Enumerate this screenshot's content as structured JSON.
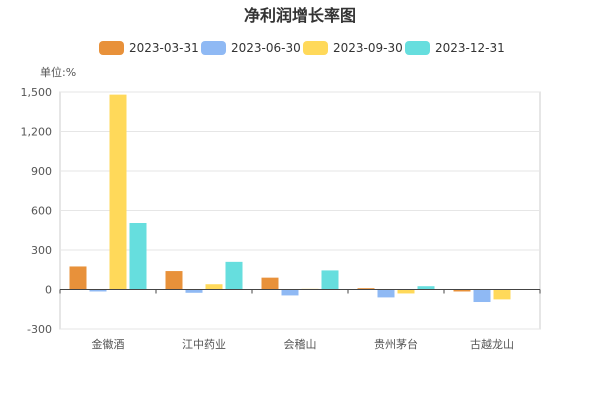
{
  "chart_data": {
    "type": "bar",
    "title": "净利润增长率图",
    "unit_label": "单位:%",
    "categories": [
      "金徽酒",
      "江中药业",
      "会稽山",
      "贵州茅台",
      "古越龙山"
    ],
    "series": [
      {
        "name": "2023-03-31",
        "color": "#E8913A",
        "values": [
          175,
          140,
          90,
          10,
          -15
        ]
      },
      {
        "name": "2023-06-30",
        "color": "#8FB9F4",
        "values": [
          -15,
          -25,
          -45,
          -60,
          -95
        ]
      },
      {
        "name": "2023-09-30",
        "color": "#FFD95A",
        "values": [
          1480,
          40,
          5,
          -30,
          -75
        ]
      },
      {
        "name": "2023-12-31",
        "color": "#66DEDE",
        "values": [
          505,
          210,
          145,
          25,
          0
        ]
      }
    ],
    "ylim": [
      -300,
      1500
    ],
    "yticks": [
      -300,
      0,
      300,
      600,
      900,
      1200,
      1500
    ],
    "ytick_labels": [
      "-300",
      "0",
      "300",
      "600",
      "900",
      "1,200",
      "1,500"
    ],
    "grid": true,
    "legend_position": "top"
  }
}
